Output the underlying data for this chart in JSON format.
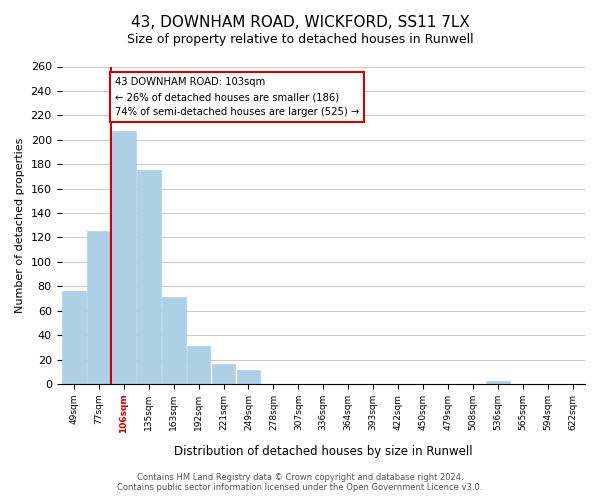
{
  "title": "43, DOWNHAM ROAD, WICKFORD, SS11 7LX",
  "subtitle": "Size of property relative to detached houses in Runwell",
  "xlabel": "Distribution of detached houses by size in Runwell",
  "ylabel": "Number of detached properties",
  "bar_color": "#aed0e6",
  "bar_edge_color": "#aed0e6",
  "highlight_color": "#cc0000",
  "bins": [
    "49sqm",
    "77sqm",
    "106sqm",
    "135sqm",
    "163sqm",
    "192sqm",
    "221sqm",
    "249sqm",
    "278sqm",
    "307sqm",
    "336sqm",
    "364sqm",
    "393sqm",
    "422sqm",
    "450sqm",
    "479sqm",
    "508sqm",
    "536sqm",
    "565sqm",
    "594sqm",
    "622sqm"
  ],
  "values": [
    76,
    125,
    207,
    175,
    71,
    31,
    16,
    11,
    0,
    0,
    0,
    0,
    0,
    0,
    0,
    0,
    0,
    2,
    0,
    0,
    0
  ],
  "highlight_bin_index": 2,
  "annotation_line1": "43 DOWNHAM ROAD: 103sqm",
  "annotation_line2": "← 26% of detached houses are smaller (186)",
  "annotation_line3": "74% of semi-detached houses are larger (525) →",
  "ylim": [
    0,
    260
  ],
  "yticks": [
    0,
    20,
    40,
    60,
    80,
    100,
    120,
    140,
    160,
    180,
    200,
    220,
    240,
    260
  ],
  "footer_line1": "Contains HM Land Registry data © Crown copyright and database right 2024.",
  "footer_line2": "Contains public sector information licensed under the Open Government Licence v3.0.",
  "background_color": "#ffffff",
  "grid_color": "#cccccc"
}
